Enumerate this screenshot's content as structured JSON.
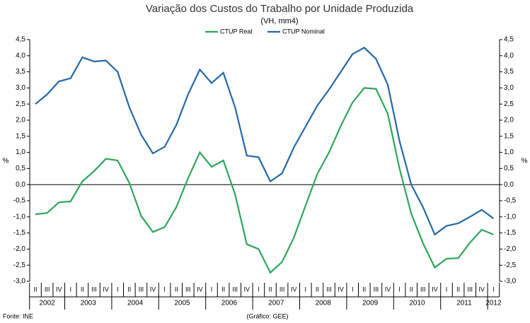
{
  "chart_data": {
    "type": "line",
    "title": "Variação dos Custos do Trabalho por Unidade Produzida",
    "subtitle": "(VH, mm4)",
    "y_label": "%",
    "source": "Fonte: INE",
    "credit": "(Gráfico: GEE)",
    "categories": [
      "II",
      "III",
      "IV",
      "I",
      "II",
      "III",
      "IV",
      "I",
      "II",
      "III",
      "IV",
      "I",
      "II",
      "III",
      "IV",
      "I",
      "II",
      "III",
      "IV",
      "I",
      "II",
      "III",
      "IV",
      "I",
      "II",
      "III",
      "IV",
      "I",
      "II",
      "III",
      "IV",
      "I",
      "II",
      "III",
      "IV",
      "I",
      "II",
      "III",
      "IV",
      "I"
    ],
    "years": [
      "2002",
      "2003",
      "2004",
      "2005",
      "2006",
      "2007",
      "2008",
      "2009",
      "2010",
      "2011",
      "2012"
    ],
    "series": [
      {
        "name": "CTUP Real",
        "color": "#2ea55a",
        "values": [
          -0.92,
          -0.88,
          -0.55,
          -0.52,
          0.1,
          0.42,
          0.8,
          0.75,
          0.05,
          -0.97,
          -1.47,
          -1.32,
          -0.7,
          0.2,
          1.0,
          0.55,
          0.75,
          -0.3,
          -1.85,
          -2.0,
          -2.73,
          -2.4,
          -1.65,
          -0.65,
          0.33,
          1.0,
          1.82,
          2.55,
          3.0,
          2.97,
          2.2,
          0.5,
          -0.9,
          -1.82,
          -2.57,
          -2.3,
          -2.28,
          -1.8,
          -1.4,
          -1.55
        ]
      },
      {
        "name": "CTUP Nominal",
        "color": "#2468a8",
        "values": [
          2.5,
          2.8,
          3.2,
          3.3,
          3.95,
          3.82,
          3.85,
          3.5,
          2.4,
          1.55,
          0.97,
          1.17,
          1.85,
          2.8,
          3.57,
          3.15,
          3.47,
          2.4,
          0.9,
          0.85,
          0.1,
          0.35,
          1.15,
          1.8,
          2.45,
          2.95,
          3.5,
          4.05,
          4.25,
          3.9,
          3.1,
          1.35,
          0.0,
          -0.7,
          -1.55,
          -1.28,
          -1.2,
          -1.0,
          -0.78,
          -1.05
        ]
      }
    ],
    "ylim": [
      -3.0,
      4.5
    ],
    "yticks": [
      {
        "value": -3.0,
        "label": "-3,0"
      },
      {
        "value": -2.5,
        "label": "-2,5"
      },
      {
        "value": -2.0,
        "label": "-2,0"
      },
      {
        "value": -1.5,
        "label": "-1,5"
      },
      {
        "value": -1.0,
        "label": "-1,0"
      },
      {
        "value": -0.5,
        "label": "-0,5"
      },
      {
        "value": 0.0,
        "label": "0,0"
      },
      {
        "value": 0.5,
        "label": "0,5"
      },
      {
        "value": 1.0,
        "label": "1,0"
      },
      {
        "value": 1.5,
        "label": "1,5"
      },
      {
        "value": 2.0,
        "label": "2,0"
      },
      {
        "value": 2.5,
        "label": "2,5"
      },
      {
        "value": 3.0,
        "label": "3,0"
      },
      {
        "value": 3.5,
        "label": "3,5"
      },
      {
        "value": 4.0,
        "label": "4,0"
      },
      {
        "value": 4.5,
        "label": "4,5"
      }
    ],
    "grid": false,
    "legend": "top"
  }
}
